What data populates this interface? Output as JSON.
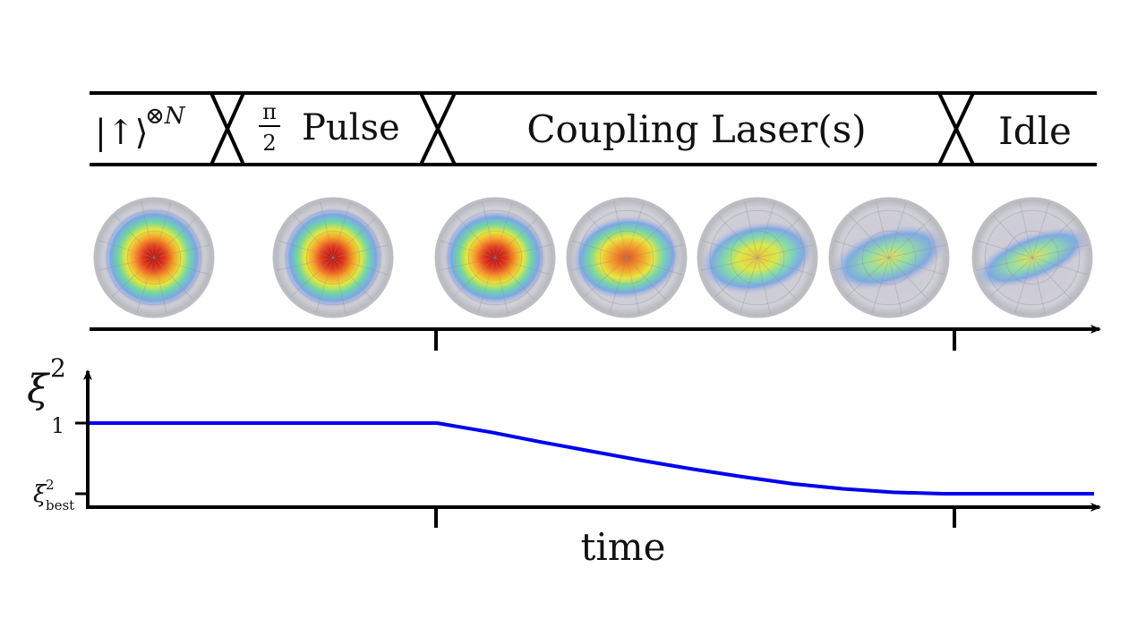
{
  "diagram": {
    "phases": [
      {
        "id": "init",
        "label_main": "|↑⟩",
        "label_sup": "⊗N"
      },
      {
        "id": "pulse",
        "frac_num": "π",
        "frac_den": "2",
        "label_main": "Pulse"
      },
      {
        "id": "coupling",
        "label_main": "Coupling Laser(s)"
      },
      {
        "id": "idle",
        "label_main": "Idle"
      }
    ],
    "spheres": [
      {
        "squeeze": 0.0,
        "peak": 1.0
      },
      {
        "squeeze": 0.0,
        "peak": 1.0
      },
      {
        "squeeze": 0.1,
        "peak": 0.95
      },
      {
        "squeeze": 0.32,
        "peak": 0.82
      },
      {
        "squeeze": 0.55,
        "peak": 0.62
      },
      {
        "squeeze": 0.75,
        "peak": 0.45
      },
      {
        "squeeze": 0.95,
        "peak": 0.3
      }
    ],
    "colors": {
      "curve": "#0000ee",
      "frame": "#000000"
    }
  },
  "chart_data": {
    "type": "line",
    "xlabel": "time",
    "ylabel": "ξ",
    "ylabel_sup": "2",
    "yticks": [
      {
        "value": 1,
        "label": "1"
      },
      {
        "value": 0,
        "label_main": "ξ",
        "label_sup": "2",
        "label_sub": "best"
      }
    ],
    "series": [
      {
        "x": [
          0.0,
          0.346,
          0.4,
          0.45,
          0.5,
          0.55,
          0.6,
          0.65,
          0.7,
          0.75,
          0.8,
          0.85,
          0.9,
          1.0
        ],
        "y": [
          1.0,
          1.0,
          0.87,
          0.73,
          0.6,
          0.47,
          0.35,
          0.24,
          0.14,
          0.07,
          0.02,
          0.0,
          0.0,
          0.0
        ]
      }
    ]
  }
}
